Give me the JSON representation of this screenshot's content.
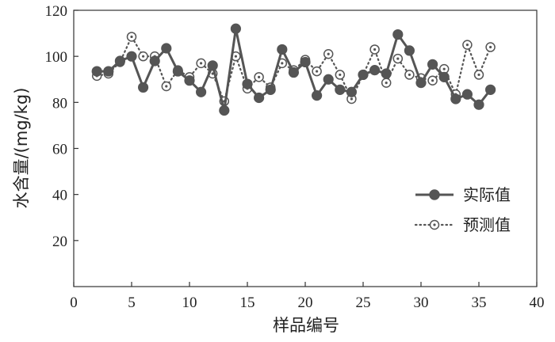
{
  "chart_data": {
    "type": "line",
    "xlabel": "样品编号",
    "ylabel": "水含量/(mg/kg)",
    "xlim": [
      0,
      40
    ],
    "ylim": [
      0,
      120
    ],
    "x_ticks": [
      0,
      5,
      10,
      15,
      20,
      25,
      30,
      35,
      40
    ],
    "y_ticks": [
      20,
      40,
      60,
      80,
      100,
      120
    ],
    "grid": false,
    "legend_position": "right",
    "x": [
      2,
      3,
      4,
      5,
      6,
      7,
      8,
      9,
      10,
      11,
      12,
      13,
      14,
      15,
      16,
      17,
      18,
      19,
      20,
      21,
      22,
      23,
      24,
      25,
      26,
      27,
      28,
      29,
      30,
      31,
      32,
      33,
      34,
      35,
      36
    ],
    "series": [
      {
        "name": "实际值",
        "style": "solid-line-filled-marker",
        "color": "#555555",
        "values": [
          93.5,
          93.5,
          98,
          100,
          86.5,
          98,
          103.5,
          93.5,
          89.5,
          84.5,
          96,
          76.5,
          112,
          88,
          82,
          85.5,
          103,
          93,
          97.5,
          83,
          90,
          85.5,
          84.5,
          92,
          94,
          92.5,
          109.5,
          102.5,
          88.5,
          96.5,
          91,
          81.5,
          83.5,
          79,
          85.5
        ]
      },
      {
        "name": "预测值",
        "style": "dotted-line-open-marker",
        "color": "#555555",
        "values": [
          91.5,
          92.5,
          97.5,
          108.5,
          100,
          100,
          87,
          94,
          91,
          97,
          92.5,
          80.5,
          100,
          86,
          91,
          86.5,
          97,
          94,
          98.5,
          93.5,
          101,
          92,
          81.5,
          92,
          103,
          88.5,
          99,
          92,
          90.5,
          89.5,
          94.5,
          83.5,
          105,
          92,
          104
        ]
      }
    ]
  }
}
